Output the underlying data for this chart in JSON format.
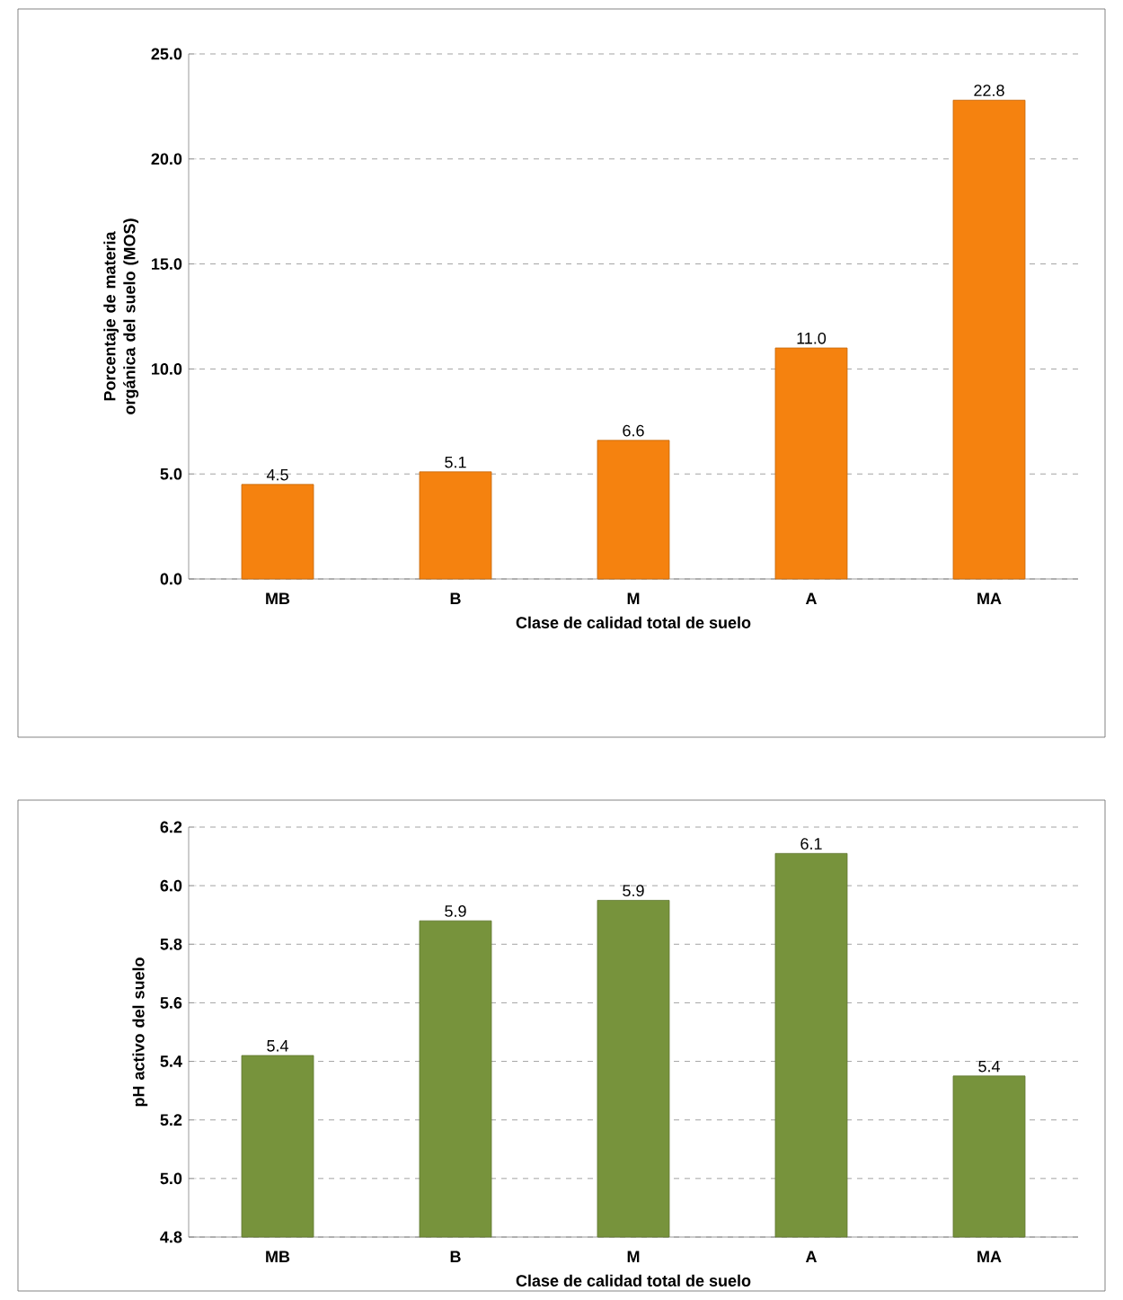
{
  "chart_data": [
    {
      "type": "bar",
      "xlabel": "Clase de calidad  total de suelo",
      "ylabel": "Porcentaje de materia orgánica del suelo (MOS)",
      "categories": [
        "MB",
        "B",
        "M",
        "A",
        "MA"
      ],
      "values": [
        4.5,
        5.1,
        6.6,
        11.0,
        22.8
      ],
      "value_labels": [
        "4.5",
        "5.1",
        "6.6",
        "11.0",
        "22.8"
      ],
      "color": "#f5820f",
      "ylim": [
        0,
        25
      ],
      "yticks": [
        {
          "value": 0,
          "label": "0.0"
        },
        {
          "value": 5,
          "label": "5.0"
        },
        {
          "value": 10,
          "label": "10.0"
        },
        {
          "value": 15,
          "label": "15.0"
        },
        {
          "value": 20,
          "label": "20.0"
        },
        {
          "value": 25,
          "label": "25.0"
        }
      ],
      "grid": "y"
    },
    {
      "type": "bar",
      "xlabel": "Clase de calidad  total de suelo",
      "ylabel": "pH activo del suelo",
      "categories": [
        "MB",
        "B",
        "M",
        "A",
        "MA"
      ],
      "values": [
        5.42,
        5.88,
        5.95,
        6.11,
        5.35
      ],
      "value_labels": [
        "5.4",
        "5.9",
        "5.9",
        "6.1",
        "5.4"
      ],
      "color": "#77933c",
      "ylim": [
        4.8,
        6.2
      ],
      "yticks": [
        {
          "value": 4.8,
          "label": "4.8"
        },
        {
          "value": 5.0,
          "label": "5.0"
        },
        {
          "value": 5.2,
          "label": "5.2"
        },
        {
          "value": 5.4,
          "label": "5.4"
        },
        {
          "value": 5.6,
          "label": "5.6"
        },
        {
          "value": 5.8,
          "label": "5.8"
        },
        {
          "value": 6.0,
          "label": "6.0"
        },
        {
          "value": 6.2,
          "label": "6.2"
        }
      ],
      "grid": "y"
    }
  ]
}
